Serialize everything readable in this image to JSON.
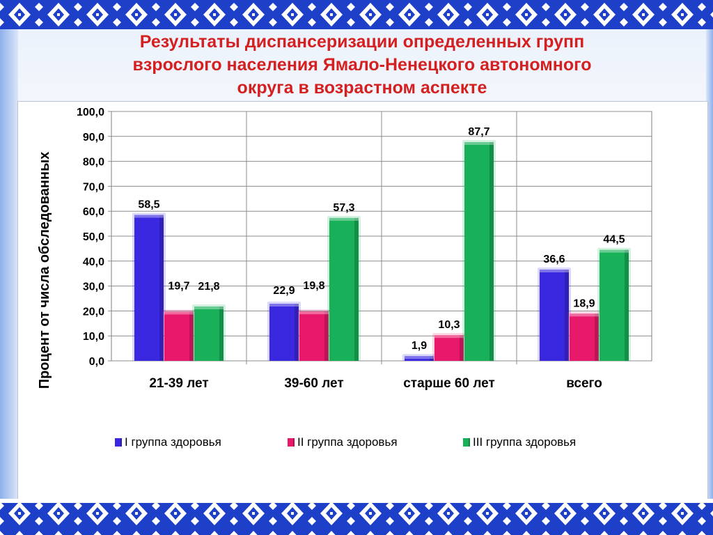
{
  "slide": {
    "title_lines": [
      "Результаты диспансеризации определенных групп",
      "взрослого населения Ямало-Ненецкого  автономного",
      "округа в возрастном аспекте"
    ],
    "title_color": "#d42020",
    "border_colors": {
      "blue": "#1e3fc8",
      "white": "#ffffff"
    }
  },
  "chart_data": {
    "type": "bar",
    "title": "",
    "xlabel": "",
    "ylabel": "Процент от числа обследованных",
    "ylim": [
      0,
      100
    ],
    "y_ticks": [
      "0,0",
      "10,0",
      "20,0",
      "30,0",
      "40,0",
      "50,0",
      "60,0",
      "70,0",
      "80,0",
      "90,0",
      "100,0"
    ],
    "categories": [
      "21-39 лет",
      "39-60 лет",
      "старше 60 лет",
      "всего"
    ],
    "series": [
      {
        "name": "I группа здоровья",
        "color": "#3a28e0",
        "values": [
          58.5,
          22.9,
          1.9,
          36.6
        ],
        "labels": [
          "58,5",
          "22,9",
          "1,9",
          "36,6"
        ]
      },
      {
        "name": "II группа здоровья",
        "color": "#e8186a",
        "values": [
          19.7,
          19.8,
          10.3,
          18.9
        ],
        "labels": [
          "19,7",
          "19,8",
          "10,3",
          "18,9"
        ]
      },
      {
        "name": "III группа здоровья",
        "color": "#18b058",
        "values": [
          21.8,
          57.3,
          87.7,
          44.5
        ],
        "labels": [
          "21,8",
          "57,3",
          "87,7",
          "44,5"
        ]
      }
    ],
    "grid": true,
    "legend_position": "bottom"
  }
}
